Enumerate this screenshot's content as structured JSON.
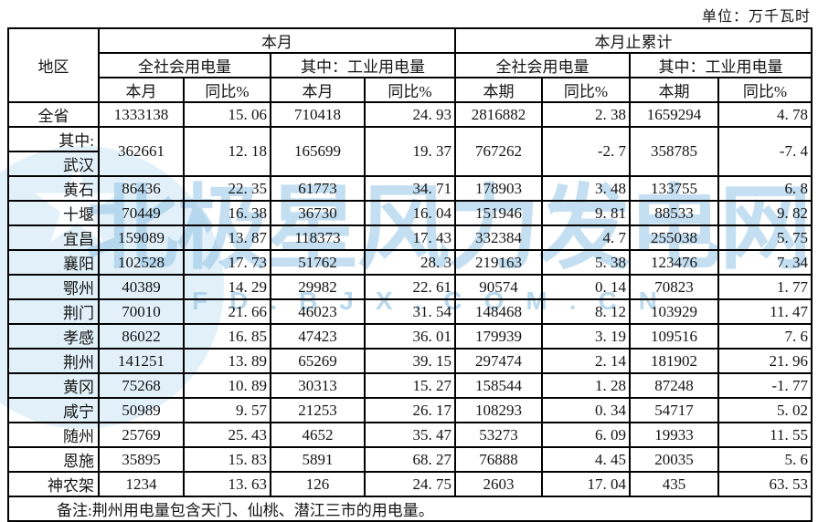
{
  "unit_label": "单位：万千瓦时",
  "watermark": {
    "text": "北极星风力发电网",
    "url_text": "FD.BJX.COM.CN",
    "color": "#94c5e5",
    "star": "★"
  },
  "table": {
    "header": {
      "region": "地区",
      "group_month": "本月",
      "group_cumulative": "本月止累计",
      "sub_total": "全社会用电量",
      "sub_industrial": "其中：工业用电量",
      "col_month": "本月",
      "col_period": "本期",
      "col_yoy": "同比%"
    },
    "rows": [
      {
        "region": "全省",
        "cells": [
          "1333138",
          "15. 06",
          "710418",
          "24. 93",
          "2816882",
          "2. 38",
          "1659294",
          "4. 78"
        ]
      },
      {
        "region_top": "其中:",
        "region_bottom": "武汉",
        "cells": [
          "362661",
          "12. 18",
          "165699",
          "19. 37",
          "767262",
          "-2. 7",
          "358785",
          "-7. 4"
        ]
      },
      {
        "region": "黄石",
        "cells": [
          "86436",
          "22. 35",
          "61773",
          "34. 71",
          "178903",
          "3. 48",
          "133755",
          "6. 8"
        ]
      },
      {
        "region": "十堰",
        "cells": [
          "70449",
          "16. 38",
          "36730",
          "16. 04",
          "151946",
          "9. 81",
          "88533",
          "9. 82"
        ]
      },
      {
        "region": "宜昌",
        "cells": [
          "159089",
          "13. 87",
          "118373",
          "17. 43",
          "332384",
          "4. 7",
          "255038",
          "5. 75"
        ]
      },
      {
        "region": "襄阳",
        "cells": [
          "102528",
          "17. 73",
          "51762",
          "28. 3",
          "219163",
          "5. 38",
          "123476",
          "7. 34"
        ]
      },
      {
        "region": "鄂州",
        "cells": [
          "40389",
          "14. 29",
          "29982",
          "22. 61",
          "90574",
          "0. 14",
          "70823",
          "1. 77"
        ]
      },
      {
        "region": "荆门",
        "cells": [
          "70010",
          "21. 66",
          "46023",
          "31. 54",
          "148468",
          "8. 12",
          "103929",
          "11. 47"
        ]
      },
      {
        "region": "孝感",
        "cells": [
          "86022",
          "16. 85",
          "47423",
          "36. 01",
          "179939",
          "3. 19",
          "109516",
          "7. 6"
        ]
      },
      {
        "region": "荆州",
        "cells": [
          "141251",
          "13. 89",
          "65269",
          "39. 15",
          "297474",
          "2. 14",
          "181902",
          "21. 96"
        ]
      },
      {
        "region": "黄冈",
        "cells": [
          "75268",
          "10. 89",
          "30313",
          "15. 27",
          "158544",
          "1. 28",
          "87248",
          "-1. 77"
        ]
      },
      {
        "region": "咸宁",
        "cells": [
          "50989",
          "9. 57",
          "21253",
          "26. 17",
          "108293",
          "0. 34",
          "54717",
          "5. 02"
        ]
      },
      {
        "region": "随州",
        "cells": [
          "25769",
          "25. 43",
          "4652",
          "35. 47",
          "53273",
          "6. 09",
          "19933",
          "11. 55"
        ]
      },
      {
        "region": "恩施",
        "cells": [
          "35895",
          "15. 83",
          "5891",
          "68. 27",
          "76888",
          "4. 45",
          "20035",
          "5. 6"
        ]
      },
      {
        "region": "神农架",
        "cells": [
          "1234",
          "13. 63",
          "126",
          "24. 75",
          "2603",
          "17. 04",
          "435",
          "63. 53"
        ]
      }
    ],
    "note": "备注:荆州用电量包含天门、仙桃、潜江三市的用电量。"
  }
}
